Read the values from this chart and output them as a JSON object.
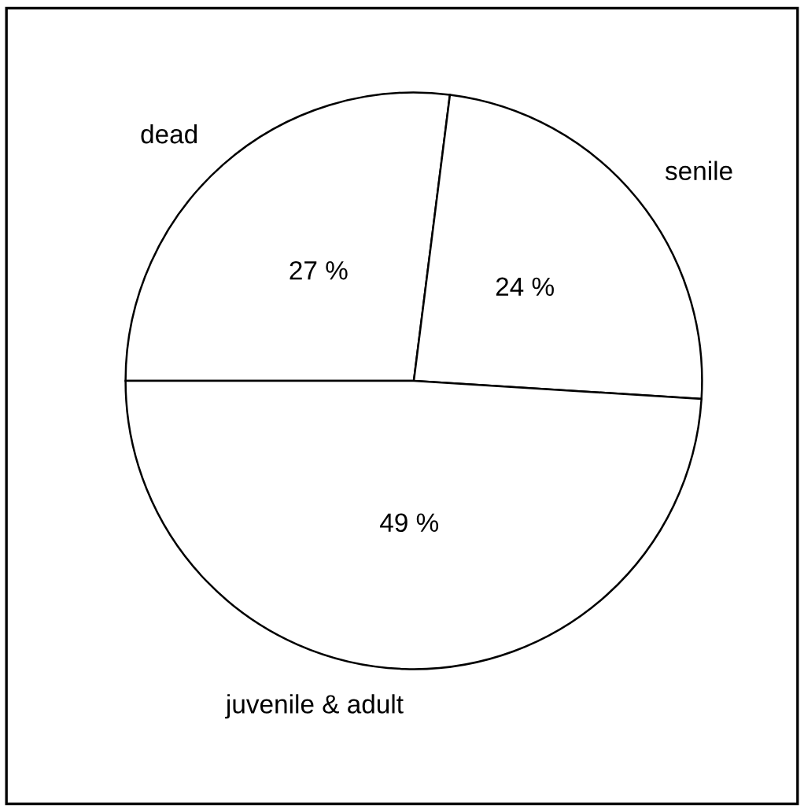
{
  "chart_data": {
    "type": "pie",
    "categories": [
      "dead",
      "senile",
      "juvenile & adult"
    ],
    "values": [
      27,
      24,
      49
    ],
    "colors": [
      "#ffffff",
      "#ffffff",
      "#ffffff"
    ],
    "value_labels": [
      "27 %",
      "24 %",
      "49 %"
    ]
  }
}
